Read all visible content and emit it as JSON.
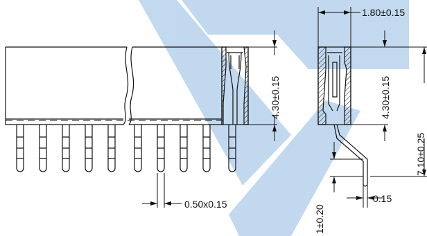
{
  "colors": {
    "line": "#111111",
    "watermark": "#b8d2ec",
    "background": "#ffffff"
  },
  "dimensions": {
    "top_width": "1.80±0.15",
    "front_height": "4.30±0.15",
    "side_height": "4.30±0.15",
    "total_height": "7.10±0.25",
    "pin_size": "0.50x0.15",
    "side_thickness": "0.15",
    "bottom_offset": "1±0.20"
  }
}
